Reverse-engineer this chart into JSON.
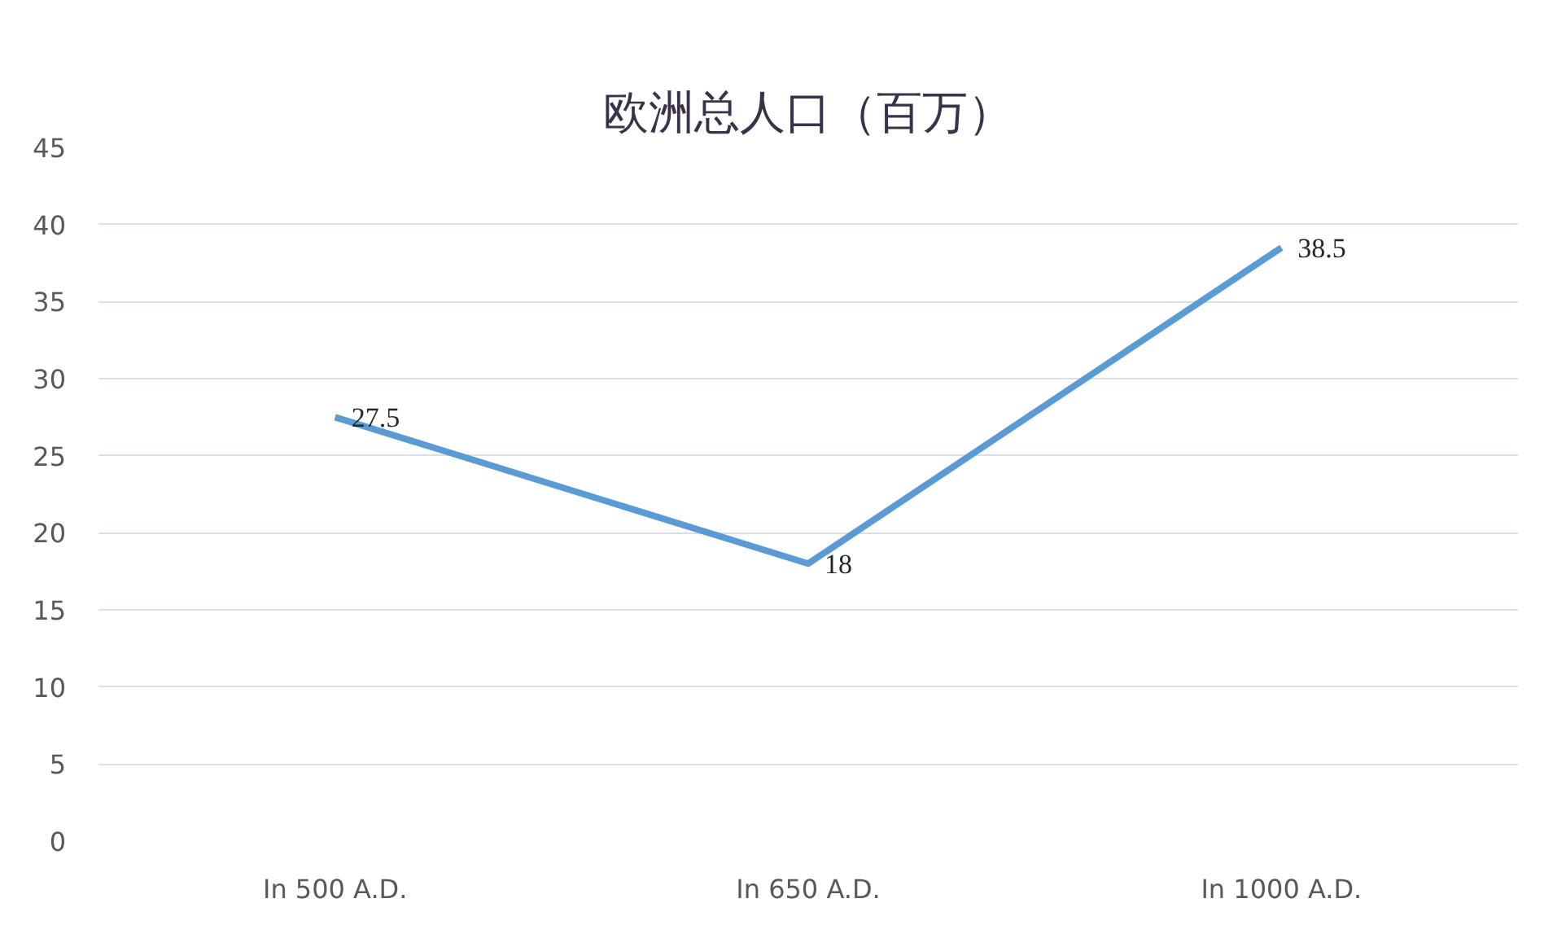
{
  "chart_data": {
    "type": "line",
    "title": "欧洲总人口（百万）",
    "categories": [
      "In 500 A.D.",
      "In 650 A.D.",
      "In 1000 A.D."
    ],
    "series": [
      {
        "color": "#5b9bd5",
        "values": [
          27.5,
          18,
          38.5
        ]
      }
    ],
    "ylim": [
      0,
      45
    ],
    "yticks": [
      0,
      5,
      10,
      15,
      20,
      25,
      30,
      35,
      40,
      45
    ],
    "grid": "y",
    "data_labels": true
  }
}
